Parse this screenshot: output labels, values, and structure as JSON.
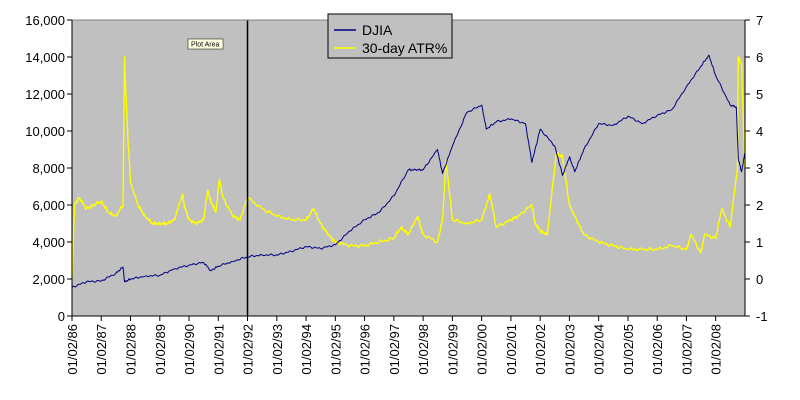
{
  "chart_data": {
    "type": "line",
    "colors": {
      "plot_bg": "#c0c0c0",
      "djia": "#000080",
      "atr": "#ffff00",
      "marker": "#000000"
    },
    "tooltip": "Plot Area",
    "y_left": {
      "min": 0,
      "max": 16000,
      "ticks": [
        0,
        2000,
        4000,
        6000,
        8000,
        10000,
        12000,
        14000,
        16000
      ],
      "tick_labels": [
        "0",
        "2,000",
        "4,000",
        "6,000",
        "8,000",
        "10,000",
        "12,000",
        "14,000",
        "16,000"
      ]
    },
    "y_right": {
      "min": -1,
      "max": 7,
      "ticks": [
        -1,
        0,
        1,
        2,
        3,
        4,
        5,
        6,
        7
      ],
      "tick_labels": [
        "-1",
        "0",
        "1",
        "2",
        "3",
        "4",
        "5",
        "6",
        "7"
      ]
    },
    "x_ticks": [
      "01/02/86",
      "01/02/87",
      "01/02/88",
      "01/02/89",
      "01/02/90",
      "01/02/91",
      "01/02/92",
      "01/02/93",
      "01/02/94",
      "01/02/95",
      "01/02/96",
      "01/02/97",
      "01/02/98",
      "01/02/99",
      "01/02/00",
      "01/02/01",
      "01/02/02",
      "01/02/03",
      "01/02/04",
      "01/02/05",
      "01/02/06",
      "01/02/07",
      "01/02/08"
    ],
    "vertical_marker": "01/02/92",
    "legend_position": "top-center",
    "series": [
      {
        "name": "DJIA",
        "axis": "left",
        "x": [
          "01/02/86",
          "07/01/86",
          "01/02/87",
          "07/01/87",
          "10/01/87",
          "10/20/87",
          "01/04/88",
          "07/01/88",
          "01/03/89",
          "07/03/89",
          "01/02/90",
          "07/02/90",
          "10/01/90",
          "01/02/91",
          "07/01/91",
          "01/02/92",
          "07/01/92",
          "01/04/93",
          "07/01/93",
          "01/03/94",
          "07/01/94",
          "01/03/95",
          "07/03/95",
          "01/02/96",
          "07/01/96",
          "01/02/97",
          "07/01/97",
          "10/01/97",
          "01/02/98",
          "07/01/98",
          "09/01/98",
          "01/04/99",
          "07/01/99",
          "01/03/00",
          "03/01/00",
          "07/03/00",
          "01/02/01",
          "07/02/01",
          "09/21/01",
          "01/02/02",
          "07/01/02",
          "10/09/02",
          "01/02/03",
          "03/11/03",
          "07/01/03",
          "01/02/04",
          "07/01/04",
          "01/03/05",
          "07/01/05",
          "01/03/06",
          "07/03/06",
          "01/03/07",
          "07/02/07",
          "10/09/07",
          "01/02/08",
          "07/01/08",
          "09/15/08",
          "10/10/08",
          "11/20/08",
          "12/31/08"
        ],
        "values": [
          1550,
          1850,
          1900,
          2300,
          2650,
          1850,
          2000,
          2150,
          2200,
          2550,
          2750,
          2900,
          2450,
          2700,
          2950,
          3200,
          3300,
          3300,
          3500,
          3750,
          3650,
          3850,
          4600,
          5200,
          5600,
          6500,
          7900,
          7900,
          7900,
          9000,
          7700,
          9200,
          11000,
          11400,
          10100,
          10500,
          10650,
          10400,
          8300,
          10100,
          9200,
          7600,
          8600,
          7800,
          9000,
          10400,
          10300,
          10800,
          10400,
          10850,
          11150,
          12400,
          13500,
          14100,
          13000,
          11400,
          11300,
          8500,
          7800,
          8800
        ]
      },
      {
        "name": "30-day ATR%",
        "axis": "right",
        "x": [
          "01/02/86",
          "02/03/86",
          "04/01/86",
          "07/01/86",
          "10/01/86",
          "01/02/87",
          "04/01/87",
          "07/01/87",
          "10/01/87",
          "10/20/87",
          "11/02/87",
          "12/01/87",
          "01/04/88",
          "04/04/88",
          "07/01/88",
          "10/03/88",
          "01/03/89",
          "04/03/89",
          "07/03/89",
          "10/13/89",
          "11/01/89",
          "01/02/90",
          "04/02/90",
          "07/02/90",
          "08/23/90",
          "10/01/90",
          "12/03/90",
          "01/16/91",
          "03/01/91",
          "07/01/91",
          "10/01/91",
          "01/02/92",
          "07/01/92",
          "01/04/93",
          "07/01/93",
          "01/03/94",
          "04/04/94",
          "07/01/94",
          "10/03/94",
          "01/03/95",
          "07/03/95",
          "01/02/96",
          "07/01/96",
          "01/02/97",
          "04/01/97",
          "07/01/97",
          "10/27/97",
          "12/01/97",
          "01/02/98",
          "07/01/98",
          "09/01/98",
          "10/15/98",
          "01/04/99",
          "07/01/99",
          "01/03/00",
          "04/14/00",
          "07/03/00",
          "01/02/01",
          "04/02/01",
          "09/21/01",
          "11/01/01",
          "01/02/02",
          "04/01/02",
          "07/23/02",
          "10/09/02",
          "01/02/03",
          "04/01/03",
          "07/01/03",
          "01/02/04",
          "07/01/04",
          "01/03/05",
          "07/01/05",
          "01/03/06",
          "07/03/06",
          "01/03/07",
          "03/01/07",
          "07/02/07",
          "08/16/07",
          "01/02/08",
          "03/17/08",
          "07/01/08",
          "09/29/08",
          "10/10/08",
          "11/20/08",
          "12/31/08"
        ],
        "values": [
          0,
          2.0,
          2.2,
          1.9,
          2.0,
          2.1,
          1.8,
          1.7,
          2.0,
          6.0,
          5.2,
          3.8,
          2.6,
          2.0,
          1.7,
          1.5,
          1.5,
          1.5,
          1.6,
          2.3,
          2.0,
          1.6,
          1.5,
          1.6,
          2.4,
          2.1,
          1.8,
          2.7,
          2.2,
          1.7,
          1.6,
          2.2,
          1.9,
          1.7,
          1.6,
          1.6,
          1.9,
          1.5,
          1.2,
          1.0,
          0.9,
          0.9,
          1.0,
          1.1,
          1.4,
          1.2,
          1.7,
          1.4,
          1.2,
          1.0,
          1.6,
          3.2,
          1.6,
          1.5,
          1.6,
          2.3,
          1.4,
          1.6,
          1.7,
          2.0,
          1.5,
          1.3,
          1.2,
          3.4,
          3.3,
          2.0,
          1.6,
          1.2,
          1.0,
          0.9,
          0.8,
          0.8,
          0.8,
          0.9,
          0.8,
          1.2,
          0.7,
          1.2,
          1.1,
          1.9,
          1.4,
          3.0,
          6.0,
          5.8,
          3.0
        ]
      }
    ]
  }
}
